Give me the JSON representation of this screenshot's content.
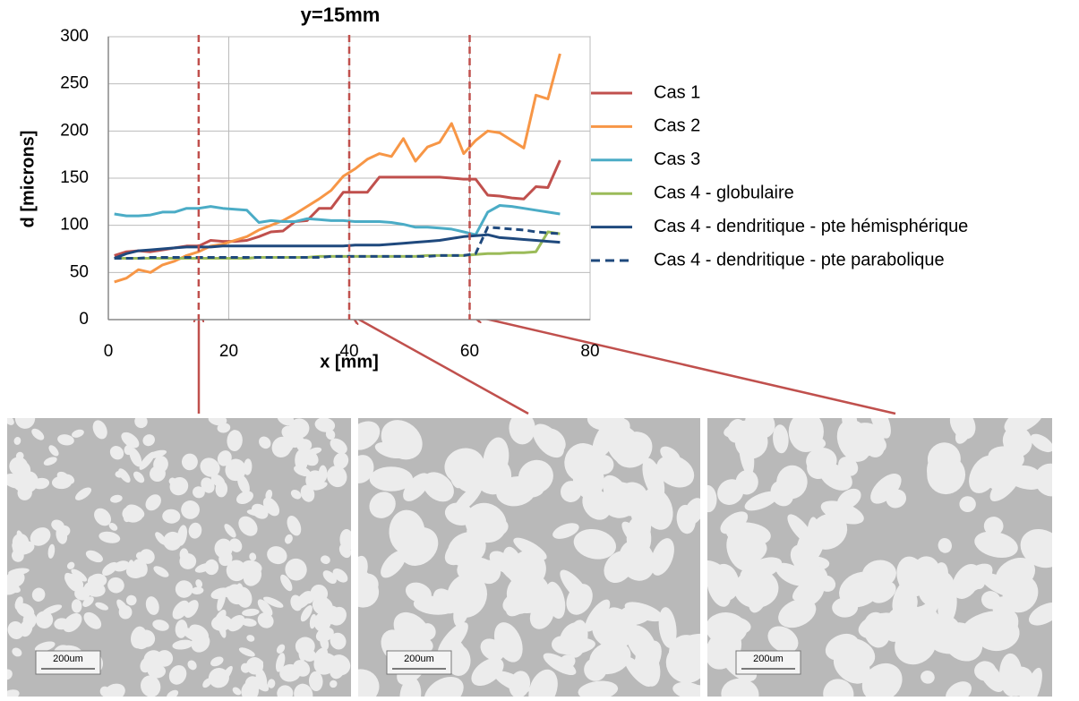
{
  "chart_data": {
    "type": "line",
    "title": "y=15mm",
    "x_label": "x [mm]",
    "y_label": "d [microns]",
    "x": [
      1,
      3,
      5,
      7,
      9,
      11,
      13,
      15,
      17,
      19,
      21,
      23,
      25,
      27,
      29,
      31,
      33,
      35,
      37,
      39,
      41,
      43,
      45,
      47,
      49,
      51,
      53,
      55,
      57,
      59,
      61,
      63,
      65,
      67,
      69,
      71,
      73,
      75
    ],
    "series": [
      {
        "name": "Cas 1",
        "color": "#c0504d",
        "values": [
          68,
          72,
          73,
          72,
          74,
          76,
          78,
          78,
          84,
          83,
          83,
          84,
          88,
          93,
          94,
          104,
          105,
          118,
          118,
          135,
          135,
          135,
          151,
          151,
          151,
          151,
          151,
          151,
          150,
          149,
          149,
          132,
          131,
          129,
          128,
          141,
          140,
          169
        ]
      },
      {
        "name": "Cas 2",
        "color": "#f79646",
        "values": [
          40,
          44,
          53,
          50,
          58,
          62,
          68,
          72,
          78,
          80,
          84,
          88,
          95,
          100,
          105,
          112,
          120,
          128,
          137,
          152,
          160,
          170,
          176,
          173,
          192,
          168,
          183,
          188,
          208,
          176,
          190,
          200,
          198,
          190,
          182,
          238,
          234,
          282
        ]
      },
      {
        "name": "Cas 3",
        "color": "#4bacc6",
        "values": [
          112,
          110,
          110,
          111,
          114,
          114,
          118,
          118,
          120,
          118,
          117,
          116,
          103,
          105,
          104,
          104,
          107,
          106,
          105,
          105,
          104,
          104,
          104,
          103,
          101,
          98,
          98,
          97,
          96,
          93,
          90,
          114,
          121,
          120,
          118,
          116,
          114,
          112
        ]
      },
      {
        "name": "Cas 4 - globulaire",
        "color": "#9bbb59",
        "values": [
          65,
          65,
          65,
          65,
          65,
          65,
          65,
          65,
          65,
          65,
          65,
          65,
          66,
          66,
          66,
          66,
          66,
          67,
          67,
          67,
          67,
          67,
          67,
          67,
          67,
          67,
          68,
          68,
          68,
          68,
          69,
          70,
          70,
          71,
          71,
          72,
          93,
          91
        ]
      },
      {
        "name": "Cas 4 - dendritique - pte hémisphérique",
        "color": "#1f497d",
        "values": [
          65,
          70,
          73,
          74,
          75,
          76,
          77,
          77,
          77,
          78,
          78,
          78,
          78,
          78,
          78,
          78,
          78,
          78,
          78,
          78,
          79,
          79,
          79,
          80,
          81,
          82,
          83,
          84,
          86,
          88,
          89,
          90,
          87,
          86,
          85,
          84,
          83,
          82
        ]
      },
      {
        "name": "Cas 4 - dendritique - pte parabolique",
        "color": "#1f497d",
        "dashed": true,
        "values": [
          65,
          65,
          65,
          66,
          66,
          66,
          66,
          66,
          66,
          66,
          66,
          66,
          66,
          66,
          66,
          66,
          66,
          66,
          67,
          67,
          67,
          67,
          67,
          67,
          67,
          67,
          67,
          68,
          68,
          68,
          70,
          98,
          97,
          96,
          95,
          93,
          92,
          91
        ]
      }
    ],
    "xlim": [
      0,
      80
    ],
    "xticks": [
      0,
      20,
      40,
      60,
      80
    ],
    "ylim": [
      0,
      300
    ],
    "yticks": [
      0,
      50,
      100,
      150,
      200,
      250,
      300
    ],
    "grid": true,
    "legend": "right",
    "reference_lines": {
      "color": "#c0504d",
      "x": [
        15,
        40,
        60
      ]
    }
  },
  "micrographs": [
    {
      "scale_label": "200um"
    },
    {
      "scale_label": "200um"
    },
    {
      "scale_label": "200um"
    }
  ]
}
